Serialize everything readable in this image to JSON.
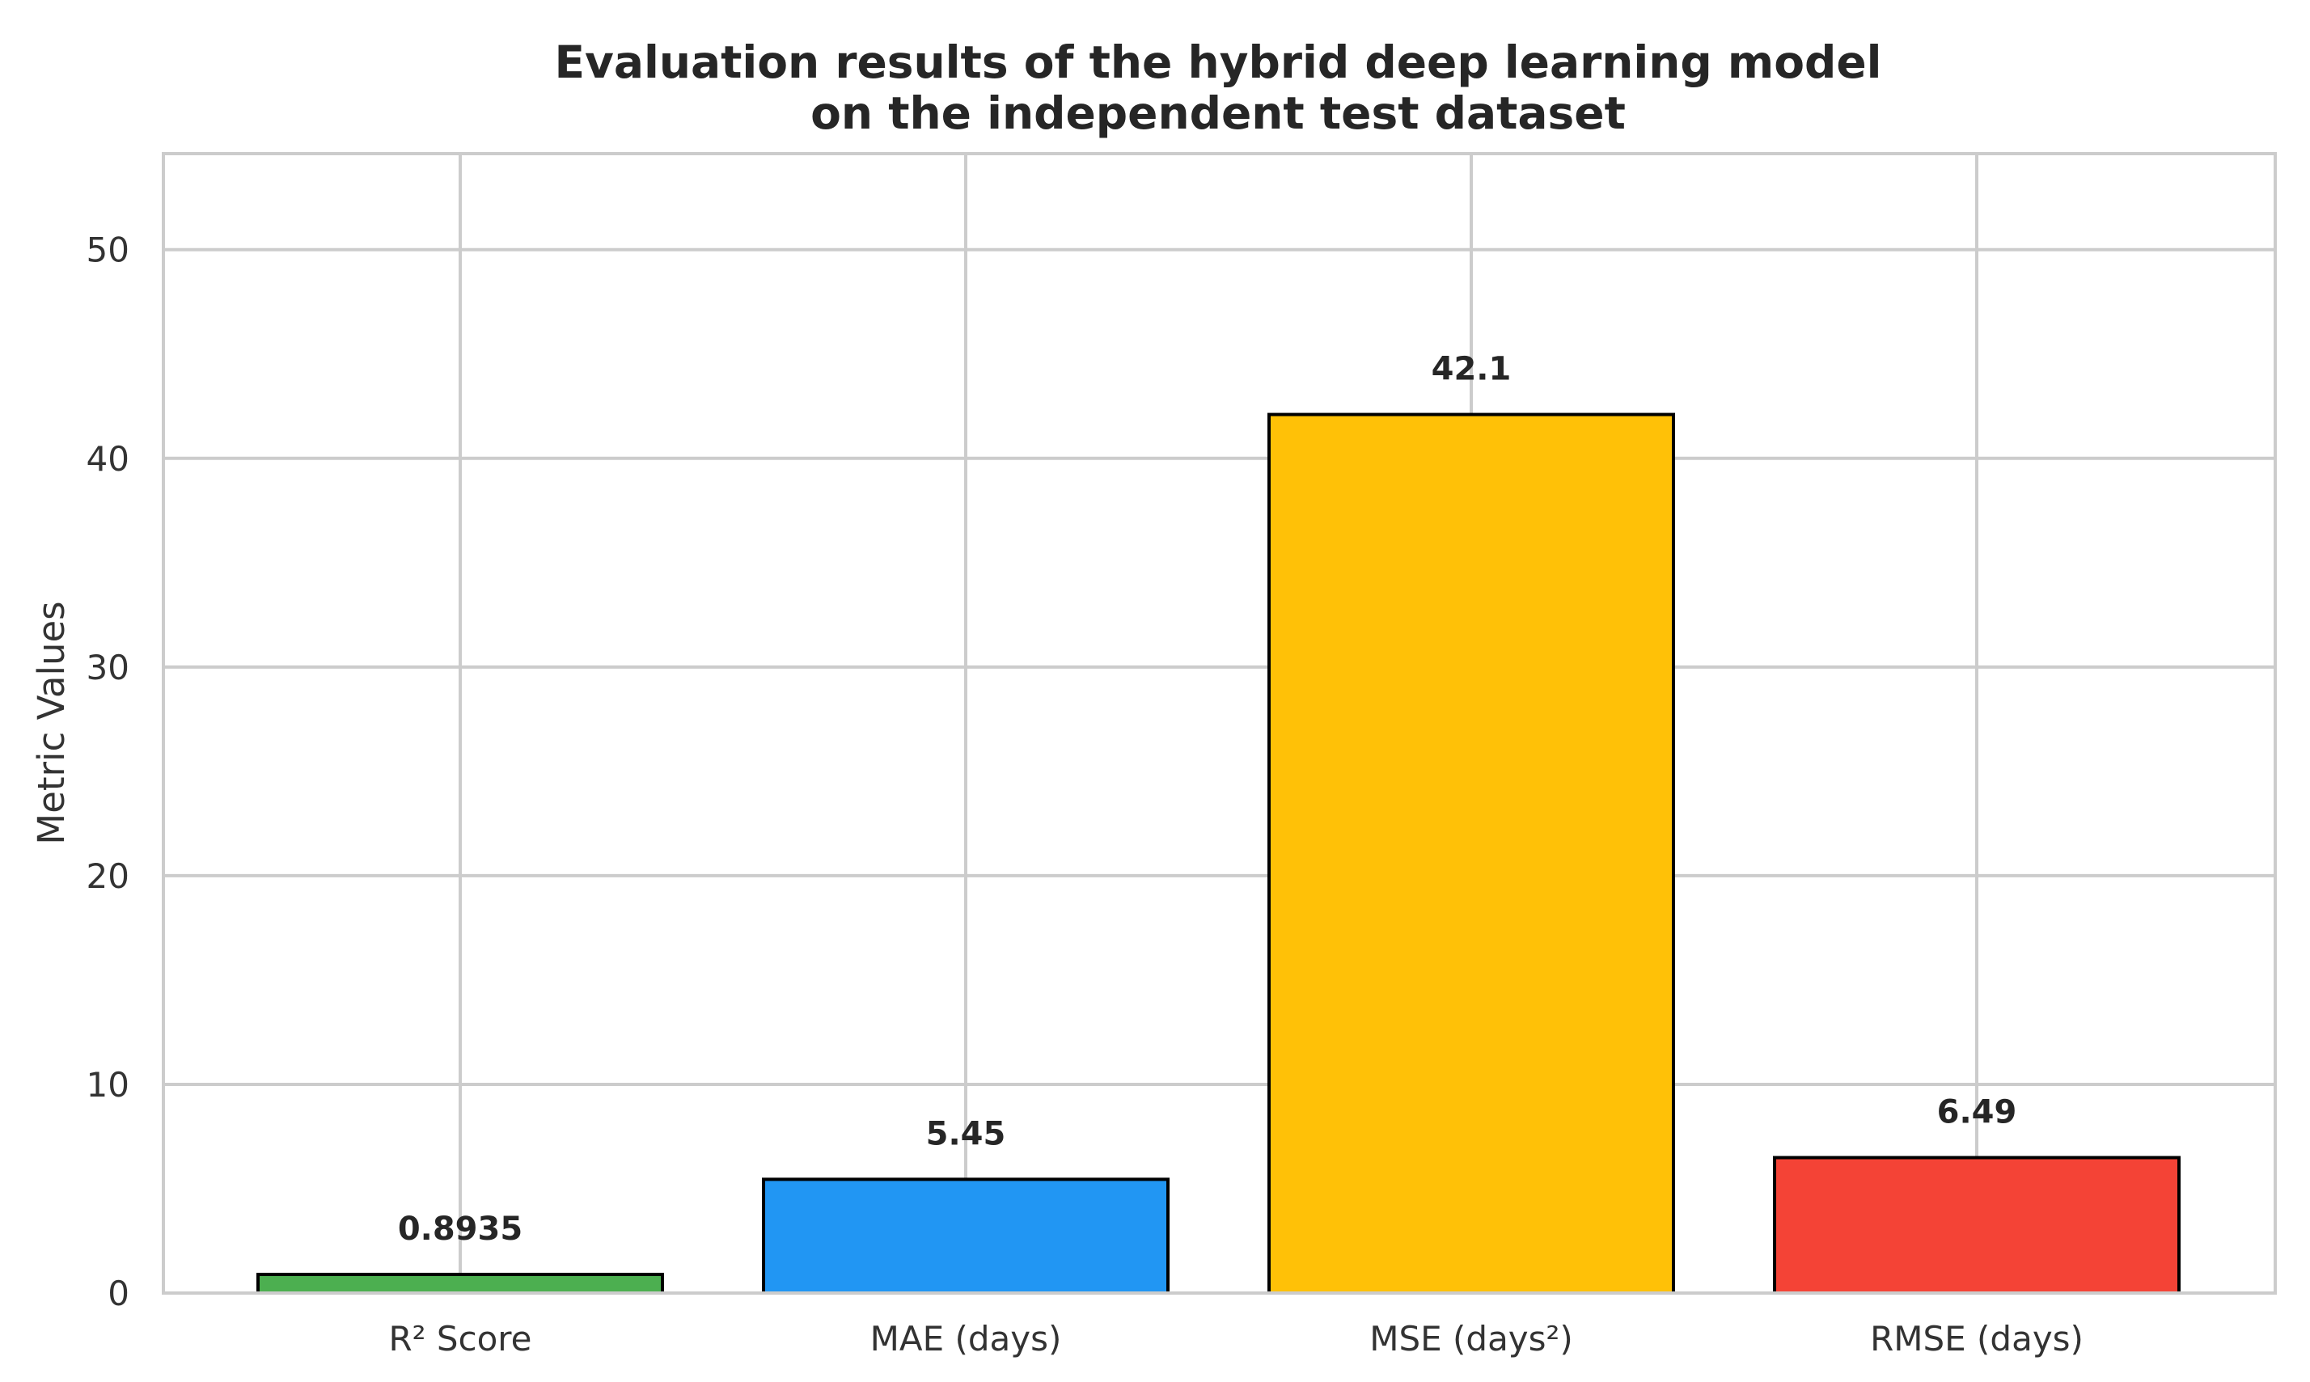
{
  "chart_data": {
    "type": "bar",
    "title_lines": [
      "Evaluation results of the hybrid deep learning model",
      "on the independent test dataset"
    ],
    "xlabel": "",
    "ylabel": "Metric Values",
    "categories": [
      "R² Score",
      "MAE (days)",
      "MSE (days²)",
      "RMSE (days)"
    ],
    "values": [
      0.8935,
      5.45,
      42.1,
      6.49
    ],
    "value_labels": [
      "0.8935",
      "5.45",
      "42.1",
      "6.49"
    ],
    "colors": [
      "#4CAF50",
      "#2196F3",
      "#FFC107",
      "#F44336"
    ],
    "ylim": [
      0,
      54.6
    ],
    "yticks": [
      0,
      10,
      20,
      30,
      40,
      50
    ],
    "ytick_labels": [
      "0",
      "10",
      "20",
      "30",
      "40",
      "50"
    ],
    "grid": true,
    "legend": "none"
  }
}
